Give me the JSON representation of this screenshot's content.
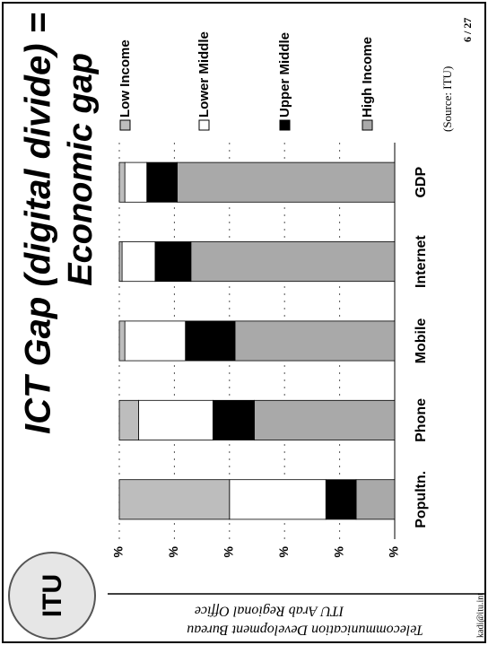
{
  "chart_data": {
    "type": "bar",
    "stacked": true,
    "title": "ICT Gap (digital divide) =",
    "subtitle": "Economic gap",
    "source": "(Source: ITU)",
    "categories": [
      "Popultn.",
      "Phone",
      "Mobile",
      "Internet",
      "GDP"
    ],
    "series": [
      {
        "name": "Low Income",
        "color": "#bdbdbd",
        "values": [
          40,
          7,
          2,
          1,
          2
        ]
      },
      {
        "name": "Lower Middle",
        "color": "#ffffff",
        "values": [
          35,
          27,
          22,
          12,
          8
        ]
      },
      {
        "name": "Upper Middle",
        "color": "#000000",
        "values": [
          11,
          15,
          18,
          13,
          11
        ]
      },
      {
        "name": "High Income",
        "color": "#a9a9a9",
        "values": [
          14,
          51,
          58,
          74,
          79
        ]
      }
    ],
    "ylim": [
      0,
      100
    ],
    "yticks": [
      {
        "value": 0,
        "label": "%"
      },
      {
        "value": 20,
        "label": "%"
      },
      {
        "value": 40,
        "label": "%"
      },
      {
        "value": 60,
        "label": "%"
      },
      {
        "value": 80,
        "label": "%"
      },
      {
        "value": 100,
        "label": "%"
      }
    ],
    "grid": true,
    "legend": "right"
  },
  "logo": "ITU",
  "footer": {
    "bureau": "Telecommunication Development Bureau",
    "office": "ITU Arab Regional Office",
    "email": "kadi@itu.int",
    "page": "6 / 27"
  }
}
